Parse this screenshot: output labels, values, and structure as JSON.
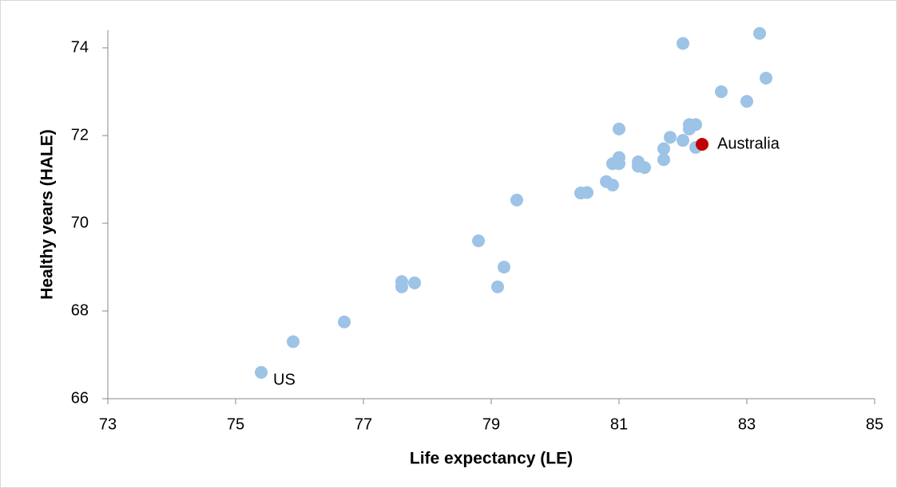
{
  "chart_data": {
    "type": "scatter",
    "x_label": "Life expectancy (LE)",
    "y_label": "Healthy years (HALE)",
    "xlim": [
      73,
      85
    ],
    "xticks": [
      73,
      75,
      77,
      79,
      81,
      83,
      85
    ],
    "ylim": [
      66,
      74.4
    ],
    "yticks": [
      66,
      68,
      70,
      72,
      74
    ],
    "grid": false,
    "series": [
      {
        "color": "#9dc3e6",
        "x": [
          75.4,
          75.9,
          76.7,
          77.6,
          77.6,
          77.8,
          78.8,
          79.2,
          79.1,
          79.4,
          80.4,
          80.5,
          80.8,
          80.9,
          80.9,
          81.0,
          81.0,
          81.0,
          81.3,
          81.3,
          81.4,
          81.7,
          81.7,
          81.8,
          82.0,
          82.1,
          82.2,
          82.1,
          82.2,
          82.0,
          83.2,
          82.6,
          83.0,
          83.3
        ],
        "values": [
          66.6,
          67.3,
          67.75,
          68.67,
          68.55,
          68.64,
          69.6,
          69.0,
          68.55,
          70.53,
          70.69,
          70.7,
          70.95,
          70.87,
          71.36,
          71.5,
          71.36,
          72.15,
          71.4,
          71.3,
          71.27,
          71.45,
          71.7,
          71.96,
          71.89,
          72.25,
          72.25,
          72.15,
          71.73,
          74.1,
          74.33,
          73.0,
          72.78,
          73.31
        ],
        "labels": [
          "US",
          null,
          null,
          null,
          null,
          null,
          null,
          null,
          null,
          null,
          null,
          null,
          null,
          null,
          null,
          null,
          null,
          null,
          null,
          null,
          null,
          null,
          null,
          null,
          null,
          null,
          null,
          null,
          null,
          null,
          null,
          null,
          null,
          null
        ]
      },
      {
        "color": "#c00000",
        "x": [
          82.3
        ],
        "values": [
          71.8
        ],
        "labels": [
          "Australia"
        ]
      }
    ]
  }
}
